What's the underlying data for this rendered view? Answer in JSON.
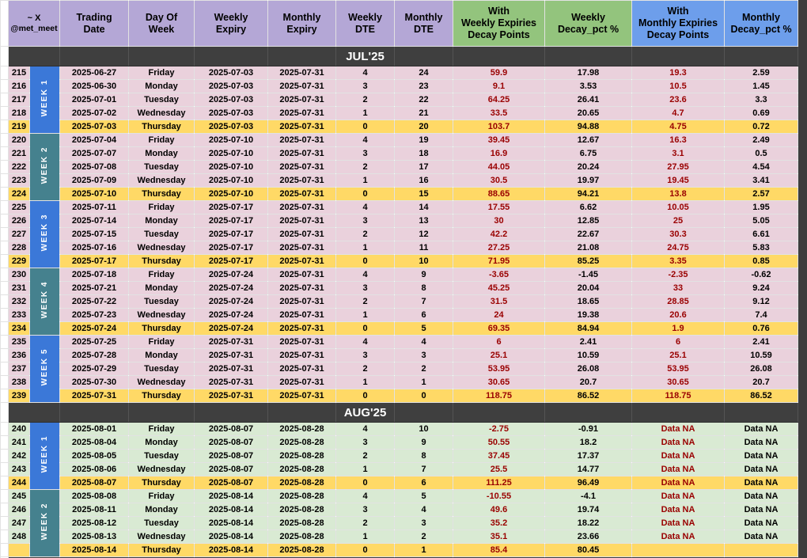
{
  "colors": {
    "header_purple": "#b4a7d6",
    "header_green": "#93c47d",
    "header_blue": "#6d9eeb",
    "band_dark": "#3f3f3f",
    "jul_row_bg": "#ead1dc",
    "aug_row_bg": "#d9ead3",
    "thursday_row": "#ffd966",
    "week_blue": "#3b78d8",
    "week_teal": "#45818e",
    "decay_red": "#990000"
  },
  "header": {
    "corner_line1": "~ X",
    "corner_line2": "@met_meet",
    "columns": [
      {
        "id": "trading-date",
        "lines": [
          "Trading",
          "Date"
        ],
        "bg": "#b4a7d6"
      },
      {
        "id": "day-of-week",
        "lines": [
          "Day Of",
          "Week"
        ],
        "bg": "#b4a7d6"
      },
      {
        "id": "weekly-expiry",
        "lines": [
          "Weekly",
          "Expiry"
        ],
        "bg": "#b4a7d6"
      },
      {
        "id": "monthly-expiry",
        "lines": [
          "Monthly",
          "Expiry"
        ],
        "bg": "#b4a7d6"
      },
      {
        "id": "weekly-dte",
        "lines": [
          "Weekly",
          "DTE"
        ],
        "bg": "#b4a7d6"
      },
      {
        "id": "monthly-dte",
        "lines": [
          "Monthly",
          "DTE"
        ],
        "bg": "#b4a7d6"
      },
      {
        "id": "weekly-decay-points",
        "lines": [
          "With",
          "Weekly Expiries",
          "Decay Points"
        ],
        "bg": "#93c47d"
      },
      {
        "id": "weekly-decay-pct",
        "lines": [
          "Weekly",
          "Decay_pct %"
        ],
        "bg": "#93c47d"
      },
      {
        "id": "monthly-decay-points",
        "lines": [
          "With",
          "Monthly Expiries",
          "Decay Points"
        ],
        "bg": "#6d9eeb"
      },
      {
        "id": "monthly-decay-pct",
        "lines": [
          "Monthly",
          "Decay_pct %"
        ],
        "bg": "#6d9eeb"
      }
    ]
  },
  "sections": [
    {
      "month": "JUL'25",
      "row_bg": "#ead1dc",
      "weeks": [
        {
          "label": "WEEK 1",
          "color": "#3b78d8",
          "rows": [
            {
              "num": "215",
              "date": "2025-06-27",
              "day": "Friday",
              "wexp": "2025-07-03",
              "mexp": "2025-07-31",
              "wdte": "4",
              "mdte": "24",
              "wpts": "59.9",
              "wpct": "17.98",
              "mpts": "19.3",
              "mpct": "2.59",
              "thursday": false
            },
            {
              "num": "216",
              "date": "2025-06-30",
              "day": "Monday",
              "wexp": "2025-07-03",
              "mexp": "2025-07-31",
              "wdte": "3",
              "mdte": "23",
              "wpts": "9.1",
              "wpct": "3.53",
              "mpts": "10.5",
              "mpct": "1.45",
              "thursday": false
            },
            {
              "num": "217",
              "date": "2025-07-01",
              "day": "Tuesday",
              "wexp": "2025-07-03",
              "mexp": "2025-07-31",
              "wdte": "2",
              "mdte": "22",
              "wpts": "64.25",
              "wpct": "26.41",
              "mpts": "23.6",
              "mpct": "3.3",
              "thursday": false
            },
            {
              "num": "218",
              "date": "2025-07-02",
              "day": "Wednesday",
              "wexp": "2025-07-03",
              "mexp": "2025-07-31",
              "wdte": "1",
              "mdte": "21",
              "wpts": "33.5",
              "wpct": "20.65",
              "mpts": "4.7",
              "mpct": "0.69",
              "thursday": false
            },
            {
              "num": "219",
              "date": "2025-07-03",
              "day": "Thursday",
              "wexp": "2025-07-03",
              "mexp": "2025-07-31",
              "wdte": "0",
              "mdte": "20",
              "wpts": "103.7",
              "wpct": "94.88",
              "mpts": "4.75",
              "mpct": "0.72",
              "thursday": true
            }
          ]
        },
        {
          "label": "WEEK 2",
          "color": "#45818e",
          "rows": [
            {
              "num": "220",
              "date": "2025-07-04",
              "day": "Friday",
              "wexp": "2025-07-10",
              "mexp": "2025-07-31",
              "wdte": "4",
              "mdte": "19",
              "wpts": "39.45",
              "wpct": "12.67",
              "mpts": "16.3",
              "mpct": "2.49",
              "thursday": false
            },
            {
              "num": "221",
              "date": "2025-07-07",
              "day": "Monday",
              "wexp": "2025-07-10",
              "mexp": "2025-07-31",
              "wdte": "3",
              "mdte": "18",
              "wpts": "16.9",
              "wpct": "6.75",
              "mpts": "3.1",
              "mpct": "0.5",
              "thursday": false
            },
            {
              "num": "222",
              "date": "2025-07-08",
              "day": "Tuesday",
              "wexp": "2025-07-10",
              "mexp": "2025-07-31",
              "wdte": "2",
              "mdte": "17",
              "wpts": "44.05",
              "wpct": "20.24",
              "mpts": "27.95",
              "mpct": "4.54",
              "thursday": false
            },
            {
              "num": "223",
              "date": "2025-07-09",
              "day": "Wednesday",
              "wexp": "2025-07-10",
              "mexp": "2025-07-31",
              "wdte": "1",
              "mdte": "16",
              "wpts": "30.5",
              "wpct": "19.97",
              "mpts": "19.45",
              "mpct": "3.41",
              "thursday": false
            },
            {
              "num": "224",
              "date": "2025-07-10",
              "day": "Thursday",
              "wexp": "2025-07-10",
              "mexp": "2025-07-31",
              "wdte": "0",
              "mdte": "15",
              "wpts": "88.65",
              "wpct": "94.21",
              "mpts": "13.8",
              "mpct": "2.57",
              "thursday": true
            }
          ]
        },
        {
          "label": "WEEK 3",
          "color": "#3b78d8",
          "rows": [
            {
              "num": "225",
              "date": "2025-07-11",
              "day": "Friday",
              "wexp": "2025-07-17",
              "mexp": "2025-07-31",
              "wdte": "4",
              "mdte": "14",
              "wpts": "17.55",
              "wpct": "6.62",
              "mpts": "10.05",
              "mpct": "1.95",
              "thursday": false
            },
            {
              "num": "226",
              "date": "2025-07-14",
              "day": "Monday",
              "wexp": "2025-07-17",
              "mexp": "2025-07-31",
              "wdte": "3",
              "mdte": "13",
              "wpts": "30",
              "wpct": "12.85",
              "mpts": "25",
              "mpct": "5.05",
              "thursday": false
            },
            {
              "num": "227",
              "date": "2025-07-15",
              "day": "Tuesday",
              "wexp": "2025-07-17",
              "mexp": "2025-07-31",
              "wdte": "2",
              "mdte": "12",
              "wpts": "42.2",
              "wpct": "22.67",
              "mpts": "30.3",
              "mpct": "6.61",
              "thursday": false
            },
            {
              "num": "228",
              "date": "2025-07-16",
              "day": "Wednesday",
              "wexp": "2025-07-17",
              "mexp": "2025-07-31",
              "wdte": "1",
              "mdte": "11",
              "wpts": "27.25",
              "wpct": "21.08",
              "mpts": "24.75",
              "mpct": "5.83",
              "thursday": false
            },
            {
              "num": "229",
              "date": "2025-07-17",
              "day": "Thursday",
              "wexp": "2025-07-17",
              "mexp": "2025-07-31",
              "wdte": "0",
              "mdte": "10",
              "wpts": "71.95",
              "wpct": "85.25",
              "mpts": "3.35",
              "mpct": "0.85",
              "thursday": true
            }
          ]
        },
        {
          "label": "WEEK 4",
          "color": "#45818e",
          "rows": [
            {
              "num": "230",
              "date": "2025-07-18",
              "day": "Friday",
              "wexp": "2025-07-24",
              "mexp": "2025-07-31",
              "wdte": "4",
              "mdte": "9",
              "wpts": "-3.65",
              "wpct": "-1.45",
              "mpts": "-2.35",
              "mpct": "-0.62",
              "thursday": false
            },
            {
              "num": "231",
              "date": "2025-07-21",
              "day": "Monday",
              "wexp": "2025-07-24",
              "mexp": "2025-07-31",
              "wdte": "3",
              "mdte": "8",
              "wpts": "45.25",
              "wpct": "20.04",
              "mpts": "33",
              "mpct": "9.24",
              "thursday": false
            },
            {
              "num": "232",
              "date": "2025-07-22",
              "day": "Tuesday",
              "wexp": "2025-07-24",
              "mexp": "2025-07-31",
              "wdte": "2",
              "mdte": "7",
              "wpts": "31.5",
              "wpct": "18.65",
              "mpts": "28.85",
              "mpct": "9.12",
              "thursday": false
            },
            {
              "num": "233",
              "date": "2025-07-23",
              "day": "Wednesday",
              "wexp": "2025-07-24",
              "mexp": "2025-07-31",
              "wdte": "1",
              "mdte": "6",
              "wpts": "24",
              "wpct": "19.38",
              "mpts": "20.6",
              "mpct": "7.4",
              "thursday": false
            },
            {
              "num": "234",
              "date": "2025-07-24",
              "day": "Thursday",
              "wexp": "2025-07-24",
              "mexp": "2025-07-31",
              "wdte": "0",
              "mdte": "5",
              "wpts": "69.35",
              "wpct": "84.94",
              "mpts": "1.9",
              "mpct": "0.76",
              "thursday": true
            }
          ]
        },
        {
          "label": "WEEK 5",
          "color": "#3b78d8",
          "rows": [
            {
              "num": "235",
              "date": "2025-07-25",
              "day": "Friday",
              "wexp": "2025-07-31",
              "mexp": "2025-07-31",
              "wdte": "4",
              "mdte": "4",
              "wpts": "6",
              "wpct": "2.41",
              "mpts": "6",
              "mpct": "2.41",
              "thursday": false
            },
            {
              "num": "236",
              "date": "2025-07-28",
              "day": "Monday",
              "wexp": "2025-07-31",
              "mexp": "2025-07-31",
              "wdte": "3",
              "mdte": "3",
              "wpts": "25.1",
              "wpct": "10.59",
              "mpts": "25.1",
              "mpct": "10.59",
              "thursday": false
            },
            {
              "num": "237",
              "date": "2025-07-29",
              "day": "Tuesday",
              "wexp": "2025-07-31",
              "mexp": "2025-07-31",
              "wdte": "2",
              "mdte": "2",
              "wpts": "53.95",
              "wpct": "26.08",
              "mpts": "53.95",
              "mpct": "26.08",
              "thursday": false
            },
            {
              "num": "238",
              "date": "2025-07-30",
              "day": "Wednesday",
              "wexp": "2025-07-31",
              "mexp": "2025-07-31",
              "wdte": "1",
              "mdte": "1",
              "wpts": "30.65",
              "wpct": "20.7",
              "mpts": "30.65",
              "mpct": "20.7",
              "thursday": false
            },
            {
              "num": "239",
              "date": "2025-07-31",
              "day": "Thursday",
              "wexp": "2025-07-31",
              "mexp": "2025-07-31",
              "wdte": "0",
              "mdte": "0",
              "wpts": "118.75",
              "wpct": "86.52",
              "mpts": "118.75",
              "mpct": "86.52",
              "thursday": true
            }
          ]
        }
      ]
    },
    {
      "month": "AUG'25",
      "row_bg": "#d9ead3",
      "weeks": [
        {
          "label": "WEEK 1",
          "color": "#3b78d8",
          "rows": [
            {
              "num": "240",
              "date": "2025-08-01",
              "day": "Friday",
              "wexp": "2025-08-07",
              "mexp": "2025-08-28",
              "wdte": "4",
              "mdte": "10",
              "wpts": "-2.75",
              "wpct": "-0.91",
              "mpts": "Data NA",
              "mpct": "Data NA",
              "thursday": false
            },
            {
              "num": "241",
              "date": "2025-08-04",
              "day": "Monday",
              "wexp": "2025-08-07",
              "mexp": "2025-08-28",
              "wdte": "3",
              "mdte": "9",
              "wpts": "50.55",
              "wpct": "18.2",
              "mpts": "Data NA",
              "mpct": "Data NA",
              "thursday": false
            },
            {
              "num": "242",
              "date": "2025-08-05",
              "day": "Tuesday",
              "wexp": "2025-08-07",
              "mexp": "2025-08-28",
              "wdte": "2",
              "mdte": "8",
              "wpts": "37.45",
              "wpct": "17.37",
              "mpts": "Data NA",
              "mpct": "Data NA",
              "thursday": false
            },
            {
              "num": "243",
              "date": "2025-08-06",
              "day": "Wednesday",
              "wexp": "2025-08-07",
              "mexp": "2025-08-28",
              "wdte": "1",
              "mdte": "7",
              "wpts": "25.5",
              "wpct": "14.77",
              "mpts": "Data NA",
              "mpct": "Data NA",
              "thursday": false
            },
            {
              "num": "244",
              "date": "2025-08-07",
              "day": "Thursday",
              "wexp": "2025-08-07",
              "mexp": "2025-08-28",
              "wdte": "0",
              "mdte": "6",
              "wpts": "111.25",
              "wpct": "96.49",
              "mpts": "Data NA",
              "mpct": "Data NA",
              "thursday": true
            }
          ]
        },
        {
          "label": "WEEK 2",
          "color": "#45818e",
          "rows": [
            {
              "num": "245",
              "date": "2025-08-08",
              "day": "Friday",
              "wexp": "2025-08-14",
              "mexp": "2025-08-28",
              "wdte": "4",
              "mdte": "5",
              "wpts": "-10.55",
              "wpct": "-4.1",
              "mpts": "Data NA",
              "mpct": "Data NA",
              "thursday": false
            },
            {
              "num": "246",
              "date": "2025-08-11",
              "day": "Monday",
              "wexp": "2025-08-14",
              "mexp": "2025-08-28",
              "wdte": "3",
              "mdte": "4",
              "wpts": "49.6",
              "wpct": "19.74",
              "mpts": "Data NA",
              "mpct": "Data NA",
              "thursday": false
            },
            {
              "num": "247",
              "date": "2025-08-12",
              "day": "Tuesday",
              "wexp": "2025-08-14",
              "mexp": "2025-08-28",
              "wdte": "2",
              "mdte": "3",
              "wpts": "35.2",
              "wpct": "18.22",
              "mpts": "Data NA",
              "mpct": "Data NA",
              "thursday": false
            },
            {
              "num": "248",
              "date": "2025-08-13",
              "day": "Wednesday",
              "wexp": "2025-08-14",
              "mexp": "2025-08-28",
              "wdte": "1",
              "mdte": "2",
              "wpts": "35.1",
              "wpct": "23.66",
              "mpts": "Data NA",
              "mpct": "Data NA",
              "thursday": false
            },
            {
              "num": "",
              "date": "2025-08-14",
              "day": "Thursday",
              "wexp": "2025-08-14",
              "mexp": "2025-08-28",
              "wdte": "0",
              "mdte": "1",
              "wpts": "85.4",
              "wpct": "80.45",
              "mpts": "",
              "mpct": "",
              "thursday": true
            }
          ]
        }
      ]
    }
  ],
  "partial_next_band": true
}
